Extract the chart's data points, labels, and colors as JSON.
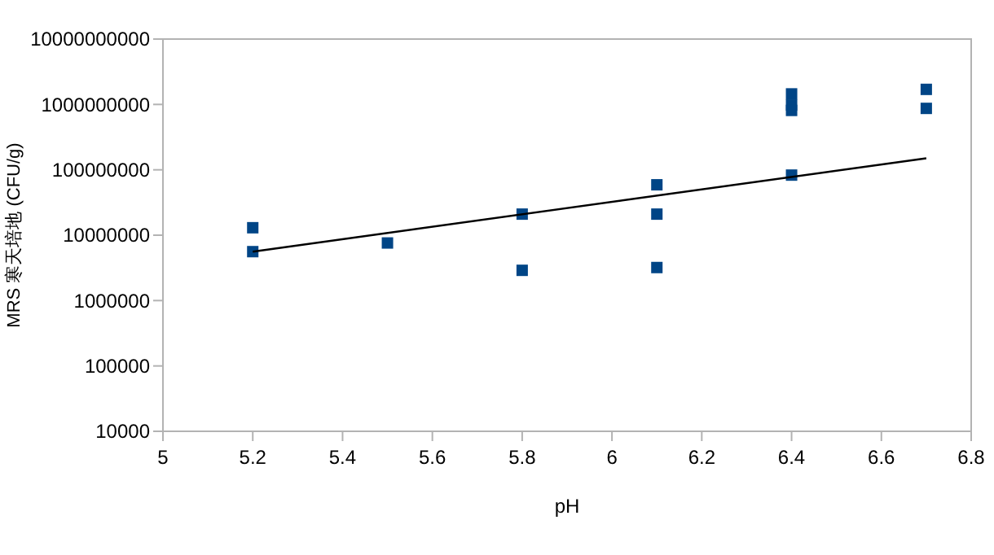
{
  "chart_data": {
    "type": "scatter",
    "xlabel": "pH",
    "ylabel": "MRS 寒天培地 (CFU/g)",
    "log": "y",
    "grid": false,
    "marker": "square",
    "xlim": [
      5,
      6.8
    ],
    "xticks": [
      5,
      5.2,
      5.4,
      5.6,
      5.8,
      6,
      6.2,
      6.4,
      6.6,
      6.8
    ],
    "ylim": [
      10000,
      10000000000
    ],
    "yticks": [
      10000,
      100000,
      1000000,
      10000000,
      100000000,
      1000000000,
      10000000000
    ],
    "series": [
      {
        "color": "#004586",
        "x": [
          5.2,
          5.2,
          5.5,
          5.8,
          5.8,
          6.1,
          6.1,
          6.1,
          6.4,
          6.4,
          6.4,
          6.4,
          6.7,
          6.7
        ],
        "values": [
          13000000,
          5600000,
          7600000,
          21000000,
          2900000,
          59000000,
          21000000,
          3200000,
          1450000000,
          980000000,
          810000000,
          83000000,
          1700000000,
          870000000
        ]
      },
      {
        "type": "line",
        "color": "#000000",
        "marker": "none",
        "x": [
          5.2,
          6.7
        ],
        "values": [
          5600000,
          150000000
        ]
      }
    ]
  }
}
